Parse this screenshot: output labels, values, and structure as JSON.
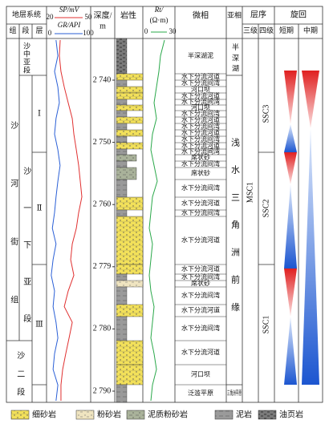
{
  "header": {
    "strat_system": "地层系统",
    "formation": "组",
    "member": "段",
    "layer": "层",
    "depth": [
      "深度/",
      "m"
    ],
    "lithology": "岩性",
    "microfacies": "微相",
    "subfacies": "亚相",
    "sequence": "层序",
    "third_order": "三级",
    "fourth_order": "四级",
    "cycle": "旋回",
    "short_term": "短期",
    "middle_term": "中期"
  },
  "logs": {
    "sp": {
      "label": "SP/mV",
      "ticks": [
        20,
        50
      ],
      "color": "#e03030",
      "values": [
        28.5,
        27.8,
        29.1,
        31.8,
        35,
        38.3,
        39.6,
        41.6,
        43.5,
        44.8,
        46.1,
        43.5,
        41.6,
        38.3,
        37,
        39.6,
        35,
        31.8,
        38.3,
        35.7,
        33,
        30.5,
        29.1,
        29.1
      ]
    },
    "gr": {
      "label": "GR/API",
      "ticks": [
        0,
        100
      ],
      "color": "#2a5fd6",
      "values": [
        17,
        22,
        13,
        22,
        26,
        17,
        13,
        22,
        28,
        22,
        17,
        13,
        7,
        17,
        9,
        4,
        13,
        9,
        17,
        22,
        13,
        9,
        22,
        17
      ]
    },
    "rt": {
      "label": [
        "Rt/",
        "(Ω·m)"
      ],
      "ticks": [
        0,
        30
      ],
      "color": "#2aa84a",
      "values": [
        22,
        17,
        15,
        12,
        9,
        12,
        7,
        5,
        9,
        13,
        7,
        5,
        3,
        7,
        5,
        3,
        5,
        9,
        7,
        5,
        9,
        12,
        7,
        5
      ]
    }
  },
  "depth_labels": [
    "2 740",
    "2 750",
    "2 760",
    "2 779",
    "2 780",
    "2 790"
  ],
  "formation": [
    "沙河街组",
    "沙二段"
  ],
  "members": [
    "沙中亚段",
    "沙一下亚段"
  ],
  "layers": [
    "Ⅰ",
    "Ⅱ",
    "Ⅲ"
  ],
  "microfacies": [
    "半深湖泥",
    "水下分流河道",
    "水下分流间湾",
    "河口坝",
    "水下分流河道",
    "水下分流间湾",
    "河口坝",
    "水下分流间湾",
    "水下分流河道",
    "水下分流间湾",
    "水下分流河道",
    "水下分流间湾",
    "水下分流河道",
    "水下分流间湾",
    "席状砂",
    "水下分流间湾",
    "席状砂",
    "水下分流间湾",
    "水下分流河道",
    "水下分流间湾",
    "水下分流河道",
    "水下分流河道",
    "水下分流间湾",
    "席状砂",
    "水下分流间湾",
    "水下分流河道",
    "水下分流间湾",
    "水下分流河道",
    "河口坝",
    "泛滥平原"
  ],
  "subfacies": [
    "半深湖",
    "浅水三角洲前缘",
    "三角洲平原"
  ],
  "third_order": [
    "MSC1"
  ],
  "fourth_order": [
    "SSC3",
    "SSC2",
    "SSC1"
  ],
  "legend": [
    "细砂岩",
    "粉砂岩",
    "泥质粉砂岩",
    "泥岩",
    "油页岩"
  ]
}
